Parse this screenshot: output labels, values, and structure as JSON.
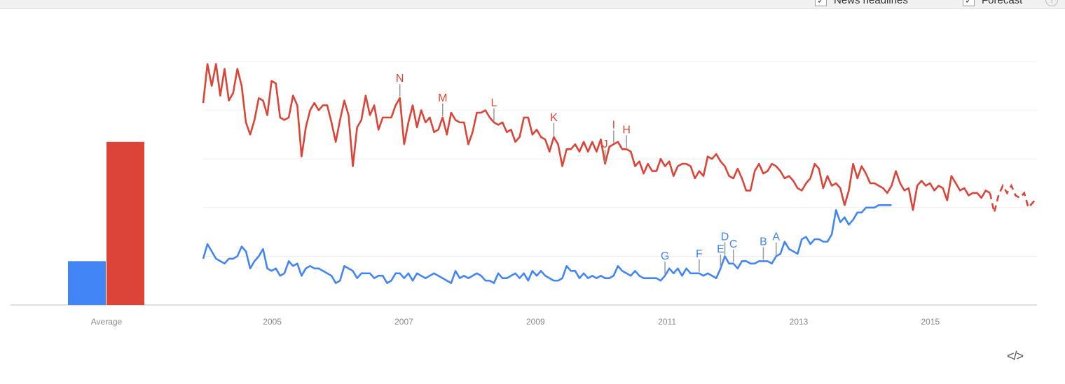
{
  "toolbar": {
    "news_label": "News headlines",
    "forecast_label": "Forecast",
    "help": "?",
    "check": "✓"
  },
  "embed_label": "</>",
  "colors": {
    "series1": "#db4437",
    "series2": "#4285f4",
    "grid": "#efefef",
    "axis": "#bdbdbd",
    "text": "#888888",
    "marker": "#999999"
  },
  "chart_data": {
    "type": "line",
    "xlabel": "",
    "ylabel": "",
    "ylim": [
      0,
      100
    ],
    "xlim": [
      2004.0,
      2016.67
    ],
    "x_ticks": [
      "2005",
      "2007",
      "2009",
      "2011",
      "2013",
      "2015"
    ],
    "grid": true,
    "average_bar": {
      "category": "Average",
      "values": [
        18,
        67
      ]
    },
    "series": [
      {
        "color": "red",
        "values": [
          83,
          99,
          90,
          99,
          86,
          97,
          84,
          87,
          97,
          90,
          75,
          70,
          76,
          85,
          84,
          78,
          92,
          91,
          77,
          76,
          77,
          86,
          82,
          61,
          73,
          80,
          83,
          80,
          82,
          82,
          75,
          67,
          76,
          84,
          78,
          57,
          73,
          76,
          86,
          78,
          82,
          72,
          77,
          77,
          77,
          82,
          85,
          66,
          75,
          82,
          73,
          80,
          75,
          77,
          71,
          72,
          77,
          70,
          79,
          76,
          75,
          75,
          66,
          71,
          79,
          79,
          80,
          77,
          75,
          74,
          75,
          71,
          72,
          67,
          69,
          77,
          77,
          70,
          72,
          69,
          68,
          63,
          69,
          66,
          57,
          64,
          64,
          66,
          63,
          67,
          63,
          67,
          63,
          68,
          58,
          65,
          66,
          67,
          64,
          64,
          63,
          57,
          59,
          54,
          58,
          55,
          55,
          60,
          57,
          59,
          53,
          57,
          58,
          58,
          57,
          52,
          55,
          53,
          61,
          60,
          62,
          59,
          57,
          53,
          52,
          56,
          52,
          47,
          47,
          55,
          58,
          54,
          55,
          58,
          57,
          55,
          52,
          53,
          51,
          48,
          47,
          50,
          52,
          58,
          56,
          48,
          53,
          49,
          50,
          48,
          41,
          47,
          58,
          52,
          57,
          54,
          50,
          50,
          49,
          48,
          46,
          49,
          55,
          50,
          47,
          48,
          39,
          49,
          51,
          49,
          50,
          47,
          49,
          48,
          43,
          53,
          50,
          47,
          48,
          45,
          46,
          46,
          44,
          47,
          46,
          38,
          45,
          49,
          46,
          49,
          45,
          44,
          46,
          40,
          42,
          44
        ],
        "forecast_from": 184
      },
      {
        "color": "blue",
        "values": [
          19,
          25,
          22,
          19,
          18,
          17,
          19,
          19,
          20,
          24,
          22,
          15,
          18,
          20,
          23,
          15,
          14,
          15,
          12,
          13,
          18,
          16,
          17,
          12,
          15,
          16,
          15,
          15,
          14,
          13,
          12,
          9,
          10,
          16,
          15,
          14,
          11,
          13,
          13,
          13,
          11,
          12,
          12,
          9,
          10,
          13,
          13,
          11,
          13,
          10,
          13,
          12,
          11,
          12,
          13,
          12,
          11,
          10,
          9,
          14,
          11,
          12,
          11,
          12,
          13,
          12,
          10,
          10,
          9,
          13,
          11,
          11,
          12,
          13,
          11,
          13,
          10,
          14,
          12,
          14,
          12,
          11,
          10,
          10,
          11,
          16,
          14,
          14,
          11,
          13,
          11,
          12,
          11,
          12,
          11,
          11,
          12,
          16,
          14,
          13,
          12,
          14,
          12,
          11,
          11,
          11,
          11,
          10,
          12,
          15,
          13,
          15,
          12,
          15,
          13,
          13,
          13,
          12,
          13,
          12,
          11,
          15,
          20,
          17,
          17,
          15,
          18,
          18,
          17,
          17,
          18,
          18,
          18,
          17,
          20,
          21,
          26,
          23,
          22,
          21,
          27,
          28,
          25,
          27,
          27,
          26,
          26,
          29,
          39,
          34,
          36,
          33,
          35,
          38,
          38,
          40,
          40,
          40,
          41,
          41,
          41,
          41
        ]
      }
    ],
    "annotations": [
      {
        "label": "N",
        "series": 0,
        "index": 46
      },
      {
        "label": "M",
        "series": 0,
        "index": 56
      },
      {
        "label": "L",
        "series": 0,
        "index": 68
      },
      {
        "label": "K",
        "series": 0,
        "index": 82
      },
      {
        "label": "J",
        "series": 0,
        "index": 94
      },
      {
        "label": "I",
        "series": 0,
        "index": 96
      },
      {
        "label": "H",
        "series": 0,
        "index": 99
      },
      {
        "label": "G",
        "series": 1,
        "index": 108
      },
      {
        "label": "F",
        "series": 1,
        "index": 116
      },
      {
        "label": "E",
        "series": 1,
        "index": 121
      },
      {
        "label": "D",
        "series": 1,
        "index": 122
      },
      {
        "label": "C",
        "series": 1,
        "index": 124
      },
      {
        "label": "B",
        "series": 1,
        "index": 131
      },
      {
        "label": "A",
        "series": 1,
        "index": 134
      }
    ]
  }
}
